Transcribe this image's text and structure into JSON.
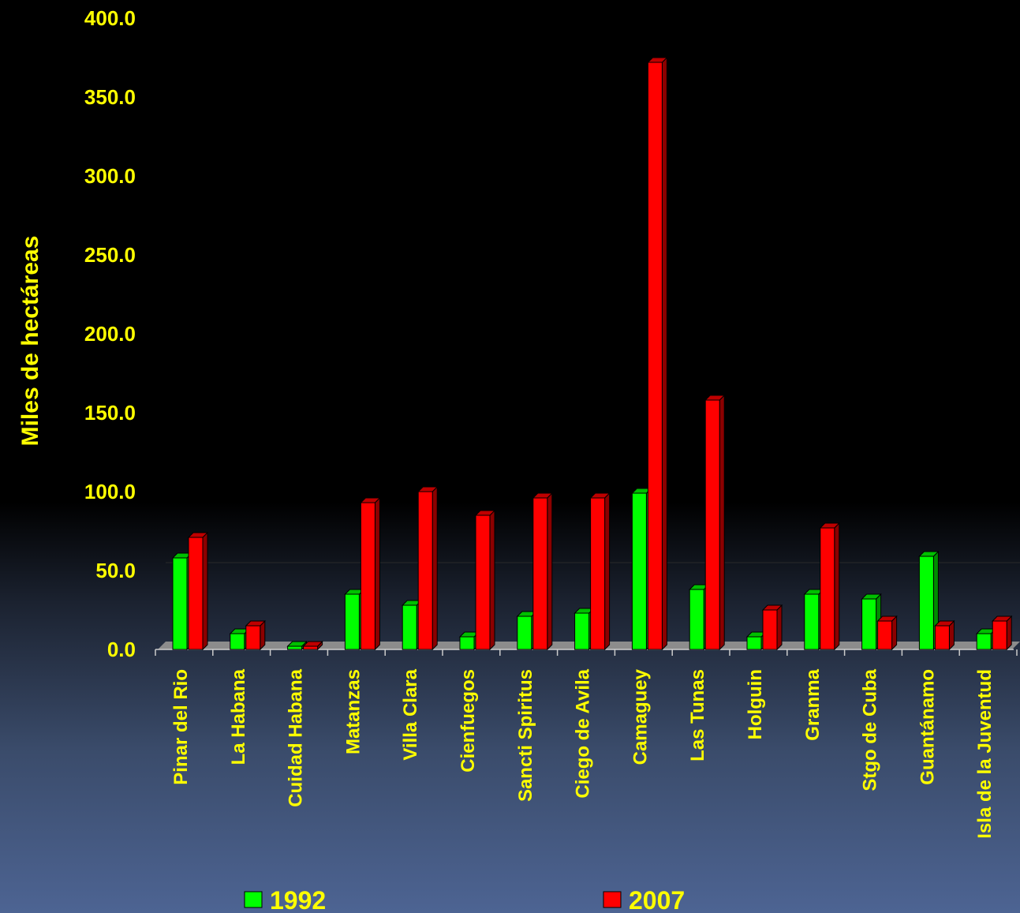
{
  "chart_data": {
    "type": "bar",
    "ylabel": "Miles de hectáreas",
    "xlabel": "",
    "ylim": [
      0,
      400
    ],
    "yticks": [
      "0.0",
      "50.0",
      "100.0",
      "150.0",
      "200.0",
      "250.0",
      "300.0",
      "350.0",
      "400.0"
    ],
    "categories": [
      "Pinar del Rio",
      "La Habana",
      "Cuidad Habana",
      "Matanzas",
      "Villa Clara",
      "Cienfuegos",
      "Sancti Spiritus",
      "Ciego de Avila",
      "Camaguey",
      "Las Tunas",
      "Holguin",
      "Granma",
      "Stgo de Cuba",
      "Guantánamo",
      "Isla de la Juventud"
    ],
    "series": [
      {
        "name": "1992",
        "color": "#00ff00",
        "values": [
          58,
          10,
          2,
          35,
          28,
          8,
          21,
          23,
          99,
          38,
          8,
          35,
          32,
          59,
          10
        ]
      },
      {
        "name": "2007",
        "color": "#ff0000",
        "values": [
          71,
          15,
          2,
          93,
          100,
          85,
          96,
          96,
          372,
          158,
          25,
          77,
          18,
          15,
          18
        ]
      }
    ],
    "grid": false,
    "legend_position": "bottom"
  }
}
